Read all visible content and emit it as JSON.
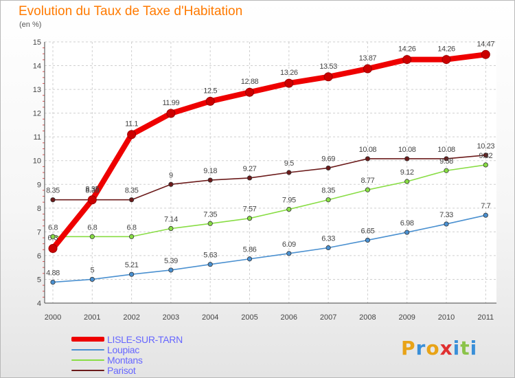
{
  "title": "Evolution du Taux de Taxe d'Habitation",
  "unit_label": "(en %)",
  "logo": {
    "text": "Proxiti",
    "colors": [
      "#e8a317",
      "#3a8fd8",
      "#e8a317",
      "#e03030",
      "#3a8fd8",
      "#8bc34a",
      "#3a8fd8"
    ]
  },
  "chart_data": {
    "type": "line",
    "title": "Evolution du Taux de Taxe d'Habitation",
    "ylabel": "(en %)",
    "xlabel": "",
    "x": [
      "2000",
      "2001",
      "2002",
      "2003",
      "2004",
      "2005",
      "2006",
      "2007",
      "2008",
      "2009",
      "2010",
      "2011"
    ],
    "ylim": [
      4,
      15
    ],
    "yticks": [
      "4",
      "5",
      "6",
      "7",
      "8",
      "9",
      "10",
      "11",
      "12",
      "13",
      "14",
      "15"
    ],
    "grid": true,
    "legend_position": "bottom-left",
    "series": [
      {
        "name": "LISLE-SUR-TARN",
        "color": "#ee0000",
        "emphasis": true,
        "values": [
          6.3,
          8.35,
          11.1,
          11.99,
          12.5,
          12.88,
          13.26,
          13.53,
          13.87,
          14.26,
          14.26,
          14.47
        ],
        "labels": [
          "",
          "8.35",
          "11.1",
          "11.99",
          "12.5",
          "12.88",
          "13.26",
          "13.53",
          "13.87",
          "14.26",
          "14.26",
          "14.47"
        ]
      },
      {
        "name": "Loupiac",
        "color": "#4a90d0",
        "values": [
          4.88,
          5,
          5.21,
          5.39,
          5.63,
          5.86,
          6.09,
          6.33,
          6.65,
          6.98,
          7.33,
          7.7
        ],
        "labels": [
          "4.88",
          "5",
          "5.21",
          "5.39",
          "5.63",
          "5.86",
          "6.09",
          "6.33",
          "6.65",
          "6.98",
          "7.33",
          "7.7"
        ]
      },
      {
        "name": "Montans",
        "color": "#88dd44",
        "values": [
          6.8,
          6.8,
          6.8,
          7.14,
          7.35,
          7.57,
          7.95,
          8.35,
          8.77,
          9.12,
          9.58,
          9.82
        ],
        "labels": [
          "6.8",
          "6.8",
          "6.8",
          "7.14",
          "7.35",
          "7.57",
          "7.95",
          "8.35",
          "8.77",
          "9.12",
          "9.58",
          "9.82"
        ]
      },
      {
        "name": "Parisot",
        "color": "#6b1a1a",
        "values": [
          8.35,
          8.35,
          8.35,
          9,
          9.18,
          9.27,
          9.5,
          9.69,
          10.08,
          10.08,
          10.08,
          10.23
        ],
        "labels": [
          "8.35",
          "8.35",
          "8.35",
          "9",
          "9.18",
          "9.27",
          "9.5",
          "9.69",
          "10.08",
          "10.08",
          "10.08",
          "10.23"
        ]
      }
    ],
    "extra_labels": [
      {
        "series": "LISLE-SUR-TARN",
        "x": "2000",
        "text": "6.3"
      }
    ]
  }
}
